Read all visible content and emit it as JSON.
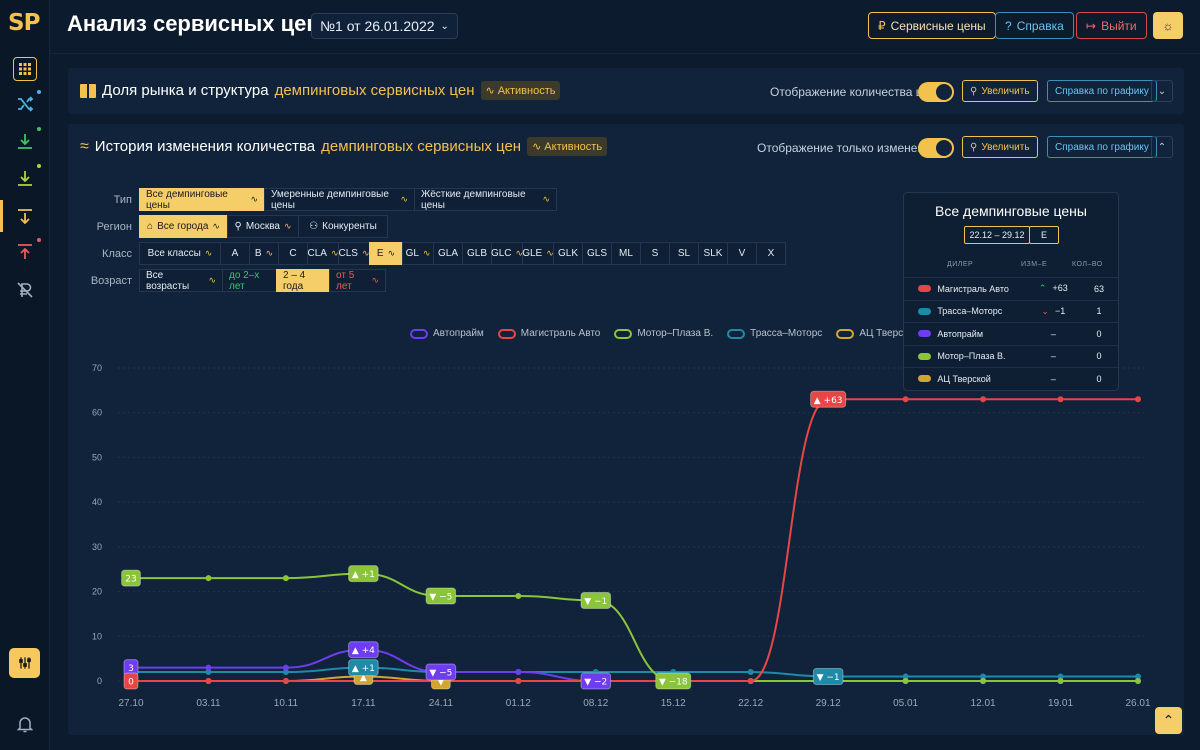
{
  "app": {
    "logo": "SP"
  },
  "header": {
    "title": "Анализ сервисных цен",
    "doc_selector": "№1 от 26.01.2022",
    "btn_prices": "Сервисные цены",
    "btn_help": "Справка",
    "btn_logout": "Выйти"
  },
  "colors": {
    "accent": "#f2c14e",
    "background": "#0c1b2d",
    "panel": "#10233a"
  },
  "sidebar": {
    "icons": [
      "grid-icon",
      "shuffle-icon",
      "download-icon",
      "download-icon",
      "sort-down-icon",
      "sort-up-icon",
      "no-rouble-icon",
      "filter-sliders-icon",
      "bell-icon"
    ]
  },
  "panel1": {
    "title_prefix": "Доля рынка и структура",
    "title_hl": "демпинговых сервисных цен",
    "badge": "Активность",
    "toggle_label": "Отображение количества цен",
    "zoom": "Увеличить",
    "chart_help": "Справка по графику"
  },
  "panel2": {
    "title_prefix": "История изменения количества",
    "title_hl": "демпинговых сервисных цен",
    "badge": "Активность",
    "toggle_label": "Отображение только изменений",
    "zoom": "Увеличить",
    "chart_help": "Справка по графику"
  },
  "filters": {
    "type": {
      "label": "Тип",
      "options": [
        "Все демпинговые цены",
        "Умеренные демпинговые цены",
        "Жёсткие демпинговые цены"
      ],
      "selected": 0
    },
    "region": {
      "label": "Регион",
      "options": [
        "Все города",
        "Москва",
        "Конкуренты"
      ],
      "selected": 0
    },
    "class": {
      "label": "Класс",
      "options": [
        "Все классы",
        "A",
        "B",
        "C",
        "CLA",
        "CLS",
        "E",
        "GL",
        "GLA",
        "GLB",
        "GLC",
        "GLE",
        "GLK",
        "GLS",
        "ML",
        "S",
        "SL",
        "SLK",
        "V",
        "X"
      ],
      "selected": 6
    },
    "age": {
      "label": "Возраст",
      "options": [
        "Все возрасты",
        "до 2–х лет",
        "2 – 4 года",
        "от 5 лет"
      ],
      "selected": 2
    }
  },
  "table": {
    "title": "Все демпинговые цены",
    "period": "22.12 – 29.12",
    "class": "E",
    "col_dealer": "ДИЛЕР",
    "col_change": "ИЗМ–Е",
    "col_count": "КОЛ–ВО",
    "rows": [
      {
        "dealer": "Магистраль Авто",
        "change": "+63",
        "count": "63",
        "color": "#e84545",
        "dir": "up"
      },
      {
        "dealer": "Трасса–Моторс",
        "change": "−1",
        "count": "1",
        "color": "#1e8aa8",
        "dir": "down"
      },
      {
        "dealer": "Автопрайм",
        "change": "–",
        "count": "0",
        "color": "#6e3df0",
        "dir": ""
      },
      {
        "dealer": "Мотор–Плаза В.",
        "change": "–",
        "count": "0",
        "color": "#8ac43a",
        "dir": ""
      },
      {
        "dealer": "АЦ Тверской",
        "change": "–",
        "count": "0",
        "color": "#d4a52e",
        "dir": ""
      }
    ]
  },
  "chart_data": {
    "type": "line",
    "x": [
      "27.10",
      "03.11",
      "10.11",
      "17.11",
      "24.11",
      "01.12",
      "08.12",
      "15.12",
      "22.12",
      "29.12",
      "05.01",
      "12.01",
      "19.01",
      "26.01"
    ],
    "ylim": [
      0,
      70
    ],
    "yticks": [
      0,
      10,
      20,
      30,
      40,
      50,
      60,
      70
    ],
    "series": [
      {
        "name": "Автопрайм",
        "color": "#6e3df0",
        "values": [
          3,
          3,
          3,
          7,
          2,
          2,
          0,
          0,
          0,
          0,
          0,
          0,
          0,
          0
        ],
        "labels": {
          "0": "3",
          "3": "+4",
          "4": "−5",
          "6": "−2"
        }
      },
      {
        "name": "Магистраль Авто",
        "color": "#e84545",
        "values": [
          0,
          0,
          0,
          0,
          0,
          0,
          0,
          0,
          0,
          63,
          63,
          63,
          63,
          63
        ],
        "labels": {
          "0": "0",
          "9": "+63"
        }
      },
      {
        "name": "Мотор–Плаза В.",
        "color": "#8ac43a",
        "values": [
          23,
          23,
          23,
          24,
          19,
          19,
          18,
          0,
          0,
          0,
          0,
          0,
          0,
          0
        ],
        "labels": {
          "0": "23",
          "3": "+1",
          "4": "−5",
          "6": "−1",
          "7": "−18"
        }
      },
      {
        "name": "Трасса–Моторс",
        "color": "#1e8aa8",
        "values": [
          2,
          2,
          2,
          3,
          2,
          2,
          2,
          2,
          2,
          1,
          1,
          1,
          1,
          1
        ],
        "labels": {
          "3": "+1",
          "9": "−1"
        }
      },
      {
        "name": "АЦ Тверской",
        "color": "#d4a52e",
        "values": [
          0,
          0,
          0,
          1,
          0,
          0,
          0,
          0,
          0,
          0,
          0,
          0,
          0,
          0
        ],
        "labels": {
          "3": "",
          "4": ""
        }
      }
    ]
  }
}
